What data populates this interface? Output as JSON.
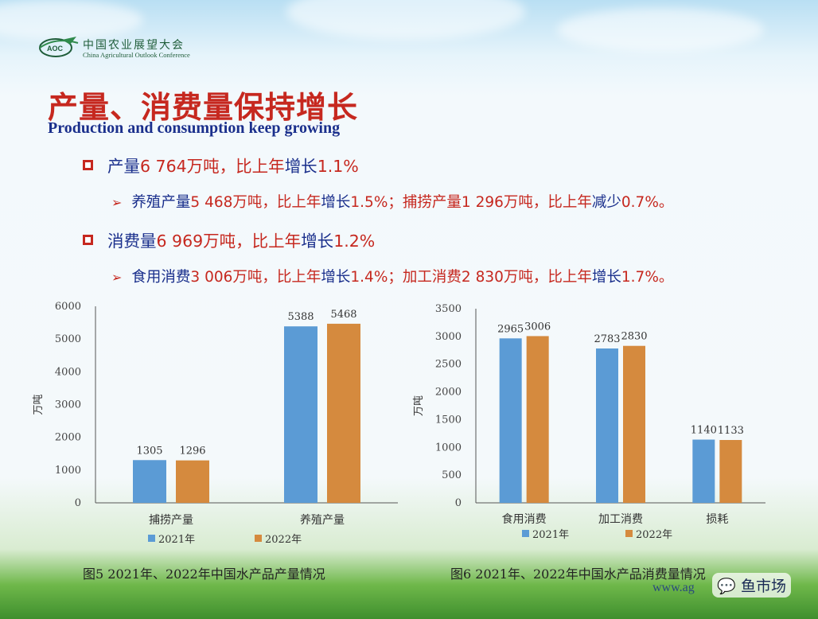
{
  "logo": {
    "badge": "AOC",
    "name_cn": "中国农业展望大会",
    "name_en": "China Agricultural Outlook Conference"
  },
  "title": {
    "cn": "产量、消费量保持增长",
    "en": "Production and consumption keep growing"
  },
  "bullets": {
    "production": {
      "p1": "产量",
      "p2": "6 764万吨，比上年",
      "p3": "增长",
      "p4": "1.1%"
    },
    "production_sub": {
      "p1": "养殖产量",
      "p2": "5 468万吨，比上年",
      "p3": "增长",
      "p4": "1.5%；捕捞产量",
      "p5": "1 296万吨，比上年",
      "p6": "减少",
      "p7": "0.7%。"
    },
    "consumption": {
      "p1": "消费量",
      "p2": "6 969万吨，比上年",
      "p3": "增长",
      "p4": "1.2%"
    },
    "consumption_sub": {
      "p1": "食用消费",
      "p2": "3 006万吨，比上年",
      "p3": "增长",
      "p4": "1.4%；加工消费",
      "p5": "2 830万吨，比上年",
      "p6": "增长",
      "p7": "1.7%。"
    }
  },
  "colors": {
    "y2021": "#5b9bd5",
    "y2022": "#d58a3e",
    "title_red": "#c6281f",
    "text_blue": "#1a2f8c"
  },
  "chart_data": [
    {
      "type": "bar",
      "caption": "图5   2021年、2022年中国水产品产量情况",
      "ylabel": "万吨",
      "ylim": [
        0,
        6000
      ],
      "yticks": [
        0,
        1000,
        2000,
        3000,
        4000,
        5000,
        6000
      ],
      "categories": [
        "捕捞产量",
        "养殖产量"
      ],
      "series": [
        {
          "name": "2021年",
          "values": [
            1305,
            5388
          ]
        },
        {
          "name": "2022年",
          "values": [
            1296,
            5468
          ]
        }
      ],
      "legend": "bottom"
    },
    {
      "type": "bar",
      "caption": "图6   2021年、2022年中国水产品消费量情况",
      "ylabel": "万吨",
      "ylim": [
        0,
        3500
      ],
      "yticks": [
        0,
        500,
        1000,
        1500,
        2000,
        2500,
        3000,
        3500
      ],
      "categories": [
        "食用消费",
        "加工消费",
        "损耗"
      ],
      "series": [
        {
          "name": "2021年",
          "values": [
            2965,
            2783,
            1140
          ]
        },
        {
          "name": "2022年",
          "values": [
            3006,
            2830,
            1133
          ]
        }
      ],
      "legend": "bottom"
    }
  ],
  "footer": {
    "url": "www.ag",
    "watermark": "鱼市场"
  }
}
